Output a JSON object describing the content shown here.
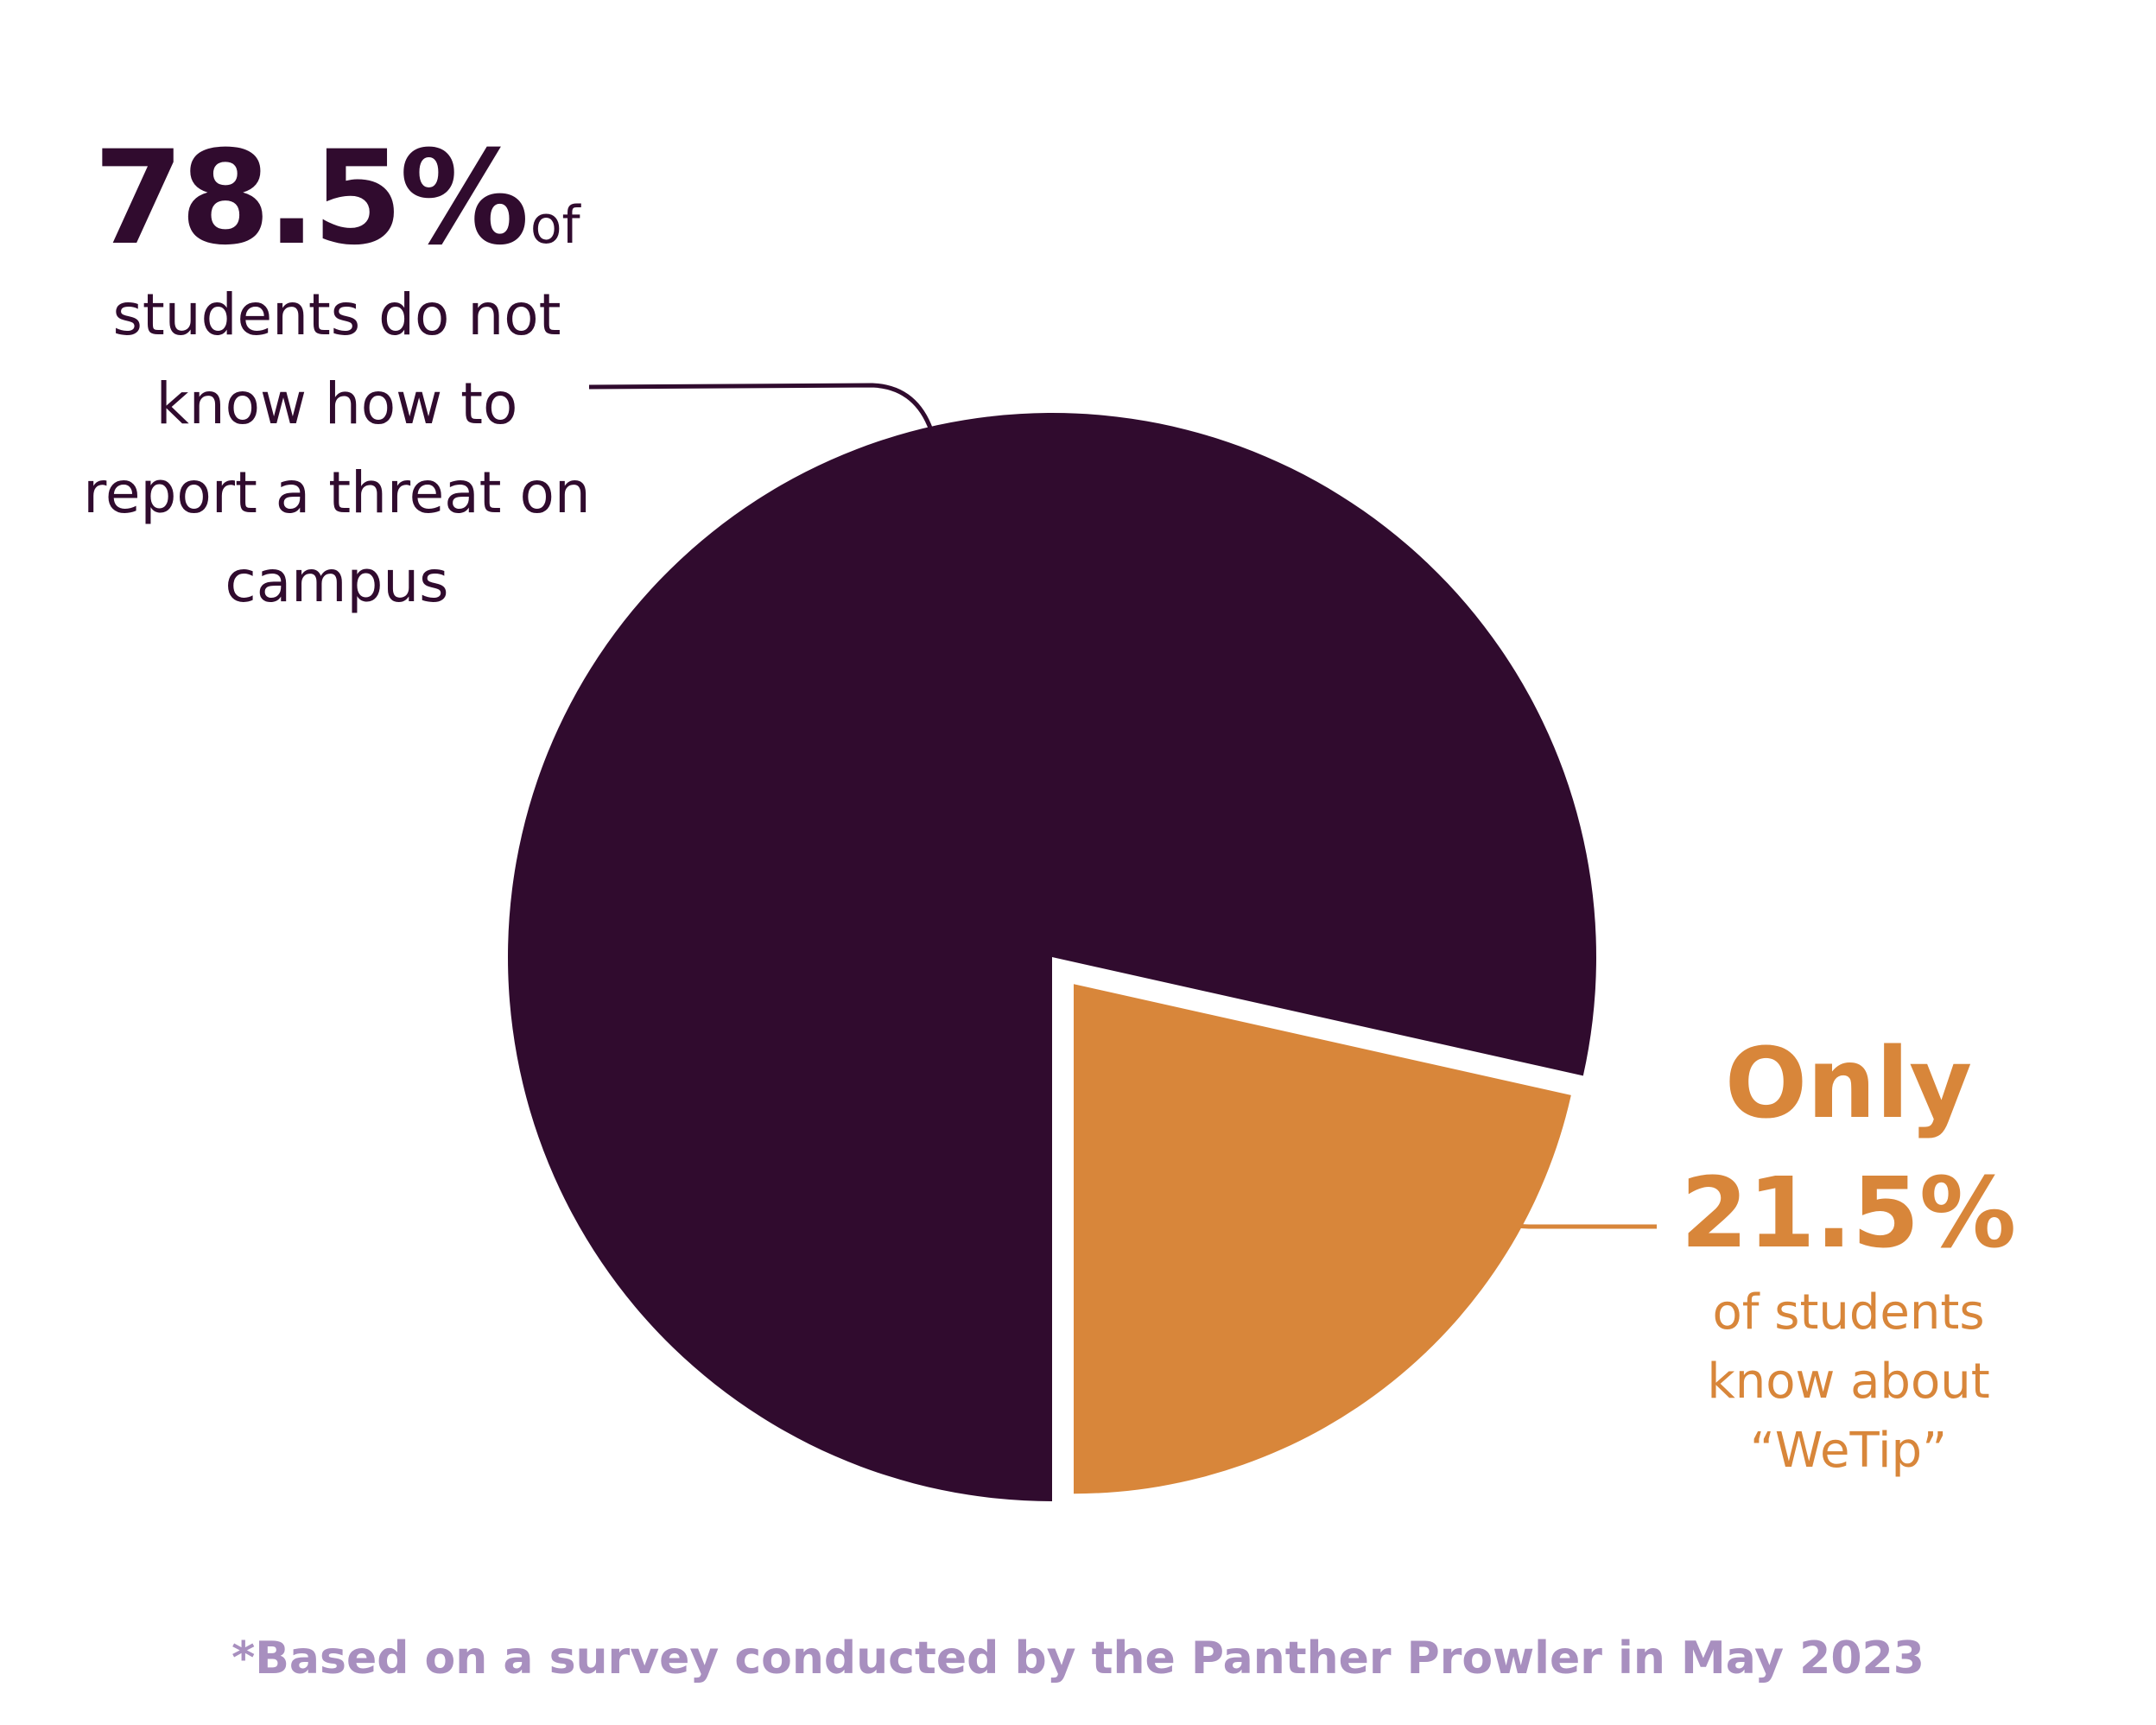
{
  "chart_data": {
    "type": "pie",
    "categories": [
      "students do not know how to report a threat on campus",
      "of students know about “WeTip”"
    ],
    "values": [
      78.5,
      21.5
    ],
    "colors": [
      "#300b2e",
      "#d8863a"
    ],
    "exploded_slice": 1,
    "title": "",
    "legend": "none"
  },
  "callouts": {
    "left": {
      "value": "78.5%",
      "suffix": "of",
      "lines": [
        "students do not",
        "know how to",
        "report a threat on",
        "campus"
      ]
    },
    "right": {
      "prefix": "Only",
      "value": "21.5%",
      "lines": [
        "of students",
        "know about",
        "“WeTip”"
      ]
    }
  },
  "footnote": "*Based on a survey conducted by the Panther Prowler in May 2023",
  "colors": {
    "primary": "#300b2e",
    "accent": "#d8863a",
    "footnote": "#a88fbf",
    "background": "#ffffff"
  }
}
